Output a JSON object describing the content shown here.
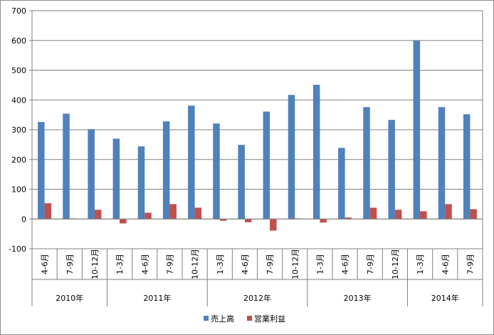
{
  "chart_data": {
    "type": "bar",
    "title": "",
    "xlabel": "",
    "ylabel": "",
    "ylim": [
      -100,
      700
    ],
    "yticks": [
      -100,
      0,
      100,
      200,
      300,
      400,
      500,
      600,
      700
    ],
    "grid": "horizontal",
    "legend_position": "bottom",
    "groups": [
      {
        "label": "2010年",
        "periods": [
          "4-6月",
          "7-9月",
          "10-12月"
        ]
      },
      {
        "label": "2011年",
        "periods": [
          "1-3月",
          "4-6月",
          "7-9月",
          "10-12月"
        ]
      },
      {
        "label": "2012年",
        "periods": [
          "1-3月",
          "4-6月",
          "7-9月",
          "10-12月"
        ]
      },
      {
        "label": "2013年",
        "periods": [
          "1-3月",
          "4-6月",
          "7-9月",
          "10-12月"
        ]
      },
      {
        "label": "2014年",
        "periods": [
          "1-3月",
          "4-6月",
          "7-9月"
        ]
      }
    ],
    "series": [
      {
        "name": "売上高",
        "color": "#4f81bd",
        "values": [
          326,
          354,
          302,
          270,
          244,
          328,
          381,
          321,
          249,
          361,
          417,
          451,
          239,
          376,
          333,
          599,
          376,
          352
        ]
      },
      {
        "name": "営業利益",
        "color": "#c0504d",
        "values": [
          53,
          2,
          31,
          -15,
          21,
          50,
          38,
          -6,
          -11,
          -39,
          2,
          -12,
          5,
          38,
          31,
          26,
          50,
          33
        ]
      }
    ]
  }
}
